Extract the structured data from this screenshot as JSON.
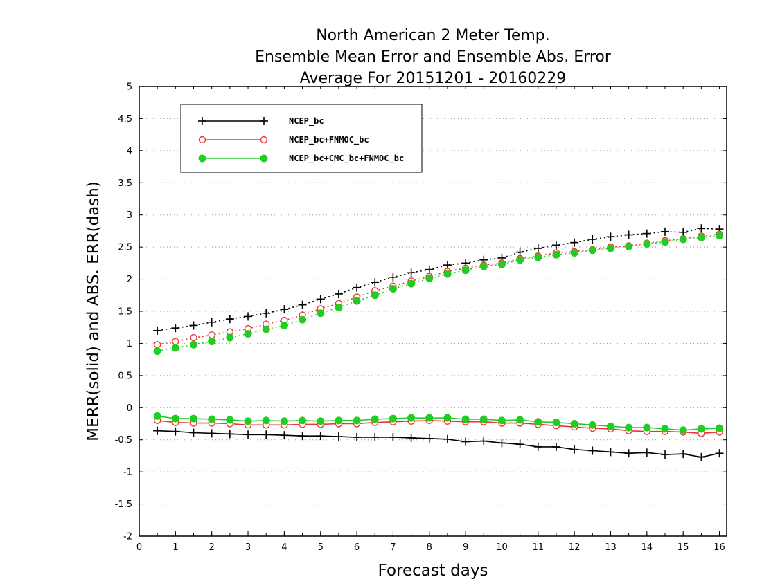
{
  "chart_data": {
    "type": "line",
    "title": [
      "North American 2 Meter Temp.",
      "Ensemble Mean Error and Ensemble Abs. Error",
      "Average For 20151201 - 20160229"
    ],
    "xlabel": "Forecast days",
    "ylabel": "MERR(solid) and ABS. ERR(dash)",
    "xlim": [
      0,
      16.2
    ],
    "ylim": [
      -2,
      5
    ],
    "xticks": [
      "0",
      "1",
      "2",
      "3",
      "4",
      "5",
      "6",
      "7",
      "8",
      "9",
      "10",
      "11",
      "12",
      "13",
      "14",
      "15",
      "16"
    ],
    "yticks": [
      "5",
      "4.5",
      "4",
      "3.5",
      "3",
      "2.5",
      "2",
      "1.5",
      "1",
      "0.5",
      "0",
      "-0.5",
      "-1",
      "-1.5",
      "-2"
    ],
    "grid": true,
    "legend_position": "top-left",
    "x": [
      0.5,
      1,
      1.5,
      2,
      2.5,
      3,
      3.5,
      4,
      4.5,
      5,
      5.5,
      6,
      6.5,
      7,
      7.5,
      8,
      8.5,
      9,
      9.5,
      10,
      10.5,
      11,
      11.5,
      12,
      12.5,
      13,
      13.5,
      14,
      14.5,
      15,
      15.5,
      16
    ],
    "series": [
      {
        "name": "NCEP_bc",
        "color": "#000000",
        "marker": "plus",
        "merr": [
          -0.36,
          -0.37,
          -0.39,
          -0.4,
          -0.41,
          -0.42,
          -0.42,
          -0.43,
          -0.44,
          -0.44,
          -0.45,
          -0.46,
          -0.46,
          -0.46,
          -0.47,
          -0.48,
          -0.49,
          -0.53,
          -0.52,
          -0.55,
          -0.57,
          -0.61,
          -0.61,
          -0.65,
          -0.67,
          -0.69,
          -0.71,
          -0.7,
          -0.73,
          -0.72,
          -0.77,
          -0.71
        ],
        "abs_err": [
          1.2,
          1.24,
          1.28,
          1.33,
          1.38,
          1.42,
          1.47,
          1.53,
          1.6,
          1.69,
          1.77,
          1.87,
          1.95,
          2.03,
          2.1,
          2.15,
          2.22,
          2.25,
          2.3,
          2.33,
          2.42,
          2.48,
          2.53,
          2.57,
          2.62,
          2.66,
          2.69,
          2.71,
          2.74,
          2.73,
          2.79,
          2.78
        ]
      },
      {
        "name": "NCEP_bc+FNMOC_bc",
        "color": "#ee3333",
        "marker": "open-circle",
        "merr": [
          -0.2,
          -0.23,
          -0.24,
          -0.24,
          -0.25,
          -0.27,
          -0.27,
          -0.27,
          -0.26,
          -0.26,
          -0.25,
          -0.25,
          -0.23,
          -0.22,
          -0.21,
          -0.2,
          -0.21,
          -0.22,
          -0.22,
          -0.24,
          -0.24,
          -0.26,
          -0.28,
          -0.3,
          -0.32,
          -0.33,
          -0.36,
          -0.37,
          -0.37,
          -0.38,
          -0.4,
          -0.38
        ],
        "abs_err": [
          0.98,
          1.03,
          1.09,
          1.13,
          1.18,
          1.23,
          1.3,
          1.36,
          1.44,
          1.54,
          1.62,
          1.72,
          1.82,
          1.89,
          1.97,
          2.04,
          2.12,
          2.17,
          2.22,
          2.25,
          2.32,
          2.36,
          2.41,
          2.43,
          2.46,
          2.5,
          2.52,
          2.56,
          2.6,
          2.63,
          2.67,
          2.7
        ]
      },
      {
        "name": "NCEP_bc+CMC_bc+FNMOC_bc",
        "color": "#22cc22",
        "marker": "filled-circle",
        "merr": [
          -0.13,
          -0.17,
          -0.17,
          -0.18,
          -0.19,
          -0.21,
          -0.2,
          -0.21,
          -0.2,
          -0.21,
          -0.2,
          -0.2,
          -0.18,
          -0.17,
          -0.16,
          -0.16,
          -0.16,
          -0.18,
          -0.18,
          -0.2,
          -0.19,
          -0.22,
          -0.23,
          -0.25,
          -0.27,
          -0.29,
          -0.31,
          -0.31,
          -0.33,
          -0.35,
          -0.33,
          -0.32
        ],
        "abs_err": [
          0.88,
          0.93,
          0.98,
          1.03,
          1.09,
          1.15,
          1.22,
          1.28,
          1.37,
          1.47,
          1.56,
          1.66,
          1.75,
          1.85,
          1.93,
          2.01,
          2.08,
          2.14,
          2.2,
          2.23,
          2.3,
          2.34,
          2.38,
          2.41,
          2.45,
          2.48,
          2.51,
          2.55,
          2.58,
          2.62,
          2.65,
          2.68
        ]
      }
    ]
  }
}
